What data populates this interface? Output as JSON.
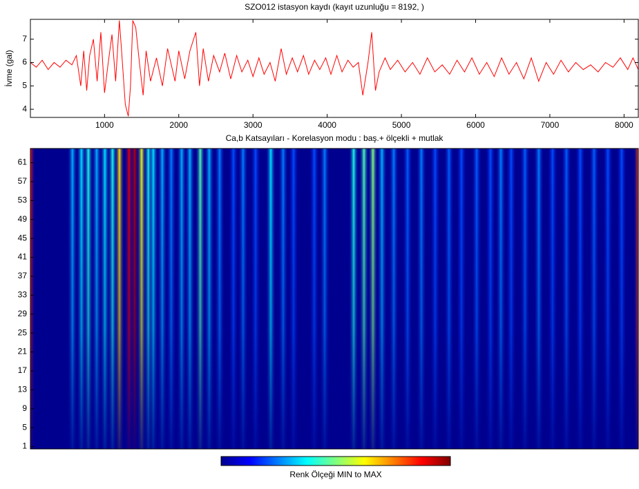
{
  "chart_data": [
    {
      "type": "line",
      "title": "SZO012 istasyon kaydı (kayıt uzunluğu = 8192, )",
      "y_label": "İvme (gal)",
      "color": "#ff0000",
      "xlim": [
        1,
        8192
      ],
      "ylim": [
        3.65,
        7.85
      ],
      "xticks": [
        1000,
        2000,
        3000,
        4000,
        5000,
        6000,
        7000,
        8000
      ],
      "yticks": [
        4,
        5,
        6,
        7
      ],
      "x": [
        1,
        80,
        160,
        240,
        320,
        400,
        480,
        560,
        620,
        680,
        720,
        760,
        800,
        850,
        900,
        950,
        1000,
        1050,
        1100,
        1150,
        1200,
        1230,
        1280,
        1320,
        1350,
        1380,
        1420,
        1470,
        1520,
        1560,
        1620,
        1700,
        1780,
        1850,
        1950,
        2000,
        2080,
        2150,
        2230,
        2280,
        2330,
        2400,
        2470,
        2550,
        2620,
        2700,
        2780,
        2850,
        2930,
        3000,
        3080,
        3150,
        3230,
        3300,
        3380,
        3450,
        3530,
        3600,
        3680,
        3750,
        3830,
        3900,
        3980,
        4050,
        4130,
        4200,
        4280,
        4350,
        4420,
        4480,
        4550,
        4600,
        4650,
        4700,
        4780,
        4850,
        4950,
        5050,
        5150,
        5250,
        5350,
        5450,
        5550,
        5650,
        5750,
        5850,
        5950,
        6050,
        6150,
        6250,
        6350,
        6450,
        6550,
        6650,
        6750,
        6850,
        6950,
        7050,
        7150,
        7250,
        7350,
        7450,
        7550,
        7650,
        7750,
        7850,
        7950,
        8050,
        8120,
        8192
      ],
      "values": [
        6.0,
        5.8,
        6.1,
        5.7,
        6.0,
        5.8,
        6.1,
        5.9,
        6.3,
        5.0,
        6.5,
        4.8,
        6.3,
        7.0,
        5.2,
        7.3,
        4.7,
        6.0,
        7.2,
        5.2,
        7.8,
        6.5,
        4.2,
        3.7,
        5.0,
        7.8,
        7.5,
        6.0,
        4.6,
        6.5,
        5.2,
        6.2,
        5.0,
        6.6,
        5.2,
        6.5,
        5.3,
        6.5,
        7.3,
        5.0,
        6.6,
        5.2,
        6.3,
        5.6,
        6.4,
        5.3,
        6.3,
        5.6,
        6.1,
        5.4,
        6.2,
        5.5,
        6.0,
        5.2,
        6.6,
        5.5,
        6.2,
        5.6,
        6.3,
        5.5,
        6.1,
        5.7,
        6.2,
        5.5,
        6.3,
        5.6,
        6.1,
        5.8,
        6.0,
        4.6,
        6.0,
        7.3,
        4.8,
        5.6,
        6.2,
        5.7,
        6.1,
        5.6,
        6.0,
        5.5,
        6.2,
        5.6,
        5.9,
        5.5,
        6.1,
        5.6,
        6.2,
        5.5,
        6.0,
        5.4,
        6.2,
        5.5,
        6.0,
        5.3,
        6.2,
        5.2,
        6.0,
        5.5,
        6.1,
        5.6,
        6.0,
        5.7,
        5.9,
        5.6,
        6.0,
        5.8,
        6.2,
        5.7,
        6.2,
        5.7
      ]
    },
    {
      "type": "heatmap",
      "title": "Ca,b Katsayıları  - Korelasyon modu : baş.+ ölçekli + mutlak",
      "colorbar_label": "Renk Ölçeği MIN to MAX",
      "xlim": [
        1,
        8192
      ],
      "ylim": [
        0.5,
        64
      ],
      "yticks": [
        1,
        5,
        9,
        13,
        17,
        21,
        25,
        29,
        33,
        37,
        41,
        45,
        49,
        53,
        57,
        61
      ],
      "x": [
        1,
        568,
        689,
        782,
        894,
        1005,
        1108,
        1201,
        1331,
        1406,
        1499,
        1592,
        1657,
        1778,
        1899,
        2039,
        2150,
        2290,
        2411,
        2551,
        2737,
        2867,
        3035,
        3240,
        3407,
        3547,
        3826,
        3966,
        4357,
        4496,
        4617,
        4738,
        4897,
        5083,
        5269,
        5455,
        5641,
        5809,
        6014,
        6200,
        6340,
        6479,
        6665,
        6851,
        7037,
        7224,
        7410,
        7596,
        7782,
        7968,
        8192
      ],
      "values": [
        0.85,
        0.3,
        0.35,
        0.4,
        0.3,
        0.35,
        0.4,
        0.65,
        0.9,
        0.95,
        0.6,
        0.4,
        0.35,
        0.3,
        0.25,
        0.3,
        0.3,
        0.45,
        0.3,
        0.25,
        0.2,
        0.25,
        0.2,
        0.35,
        0.25,
        0.2,
        0.2,
        0.25,
        0.4,
        0.45,
        0.5,
        0.3,
        0.25,
        0.22,
        0.25,
        0.2,
        0.22,
        0.2,
        0.22,
        0.2,
        0.25,
        0.2,
        0.22,
        0.25,
        0.2,
        0.22,
        0.2,
        0.22,
        0.2,
        0.2,
        0.8
      ]
    }
  ]
}
